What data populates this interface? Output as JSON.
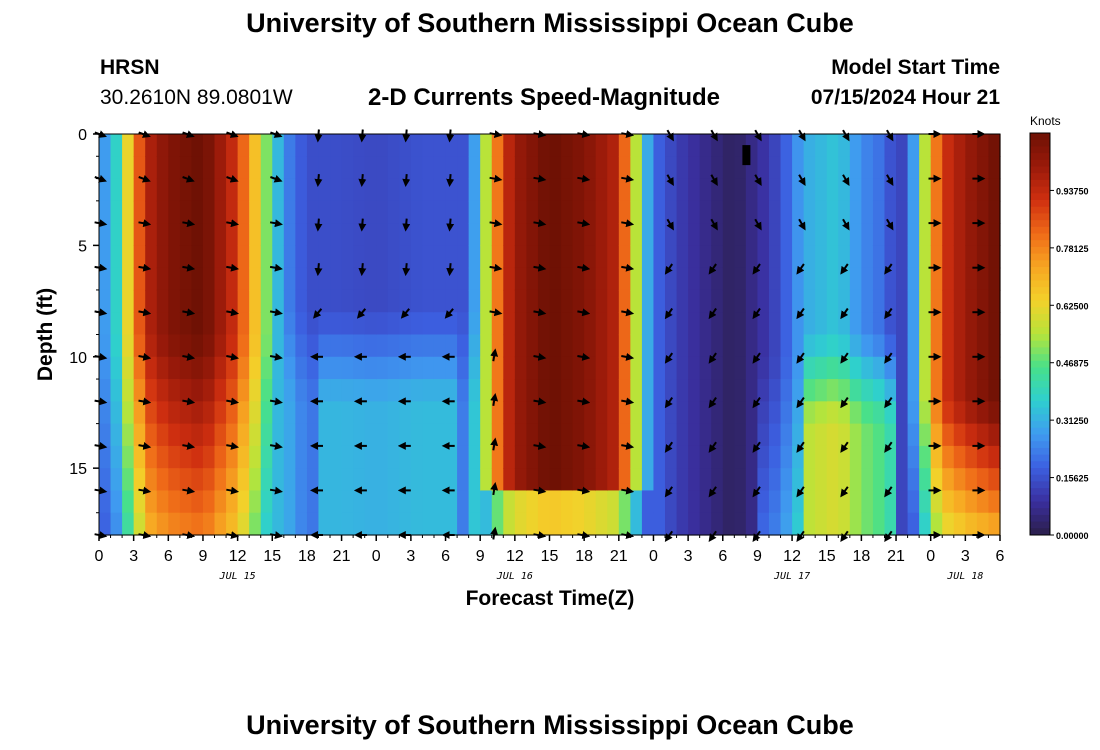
{
  "header": {
    "title": "University of Southern Mississippi Ocean Cube",
    "station": "HRSN",
    "coords": "30.2610N  89.0801W",
    "subtitle": "2-D Currents Speed-Magnitude",
    "model_label": "Model Start Time",
    "model_time": "07/15/2024 Hour 21"
  },
  "footer": {
    "title": "University of Southern Mississippi Ocean Cube"
  },
  "chart_data": {
    "type": "heatmap",
    "title": "2-D Currents Speed-Magnitude",
    "xlabel": "Forecast Time(Z)",
    "ylabel": "Depth (ft)",
    "x_range_hours": [
      0,
      78
    ],
    "y_range_ft": [
      0,
      18
    ],
    "x_tick_labels": [
      "0",
      "3",
      "6",
      "9",
      "12",
      "15",
      "18",
      "21",
      "0",
      "3",
      "6",
      "9",
      "12",
      "15",
      "18",
      "21",
      "0",
      "3",
      "6",
      "9",
      "12",
      "15",
      "18",
      "21",
      "0",
      "3",
      "6"
    ],
    "y_ticks": [
      0,
      5,
      10,
      15
    ],
    "day_labels": [
      {
        "label": "JUL 15",
        "hour": 12
      },
      {
        "label": "JUL 16",
        "hour": 36
      },
      {
        "label": "JUL 17",
        "hour": 60
      },
      {
        "label": "JUL 18",
        "hour": 75
      }
    ],
    "colorbar": {
      "unit": "Knots",
      "min": 0,
      "max": 1.09375,
      "tick_values": [
        0.0,
        0.15625,
        0.3125,
        0.46875,
        0.625,
        0.78125,
        0.9375
      ],
      "tick_labels": [
        "0.00000",
        "0.15625",
        "0.31250",
        "0.46875",
        "0.62500",
        "0.78125",
        "0.93750"
      ]
    },
    "speed_profile_surface": [
      [
        0,
        0.3
      ],
      [
        1,
        0.25
      ],
      [
        2,
        0.5
      ],
      [
        3,
        0.75
      ],
      [
        4,
        0.95
      ],
      [
        6,
        1.05
      ],
      [
        9,
        1.1
      ],
      [
        12,
        0.9
      ],
      [
        14,
        0.6
      ],
      [
        15,
        0.4
      ],
      [
        16,
        0.25
      ],
      [
        17,
        0.2
      ],
      [
        18,
        0.15
      ],
      [
        21,
        0.15
      ],
      [
        24,
        0.14
      ],
      [
        28,
        0.16
      ],
      [
        32,
        0.16
      ],
      [
        33,
        0.4
      ],
      [
        34,
        0.7
      ],
      [
        35,
        0.9
      ],
      [
        36,
        1.0
      ],
      [
        39,
        1.1
      ],
      [
        42,
        1.05
      ],
      [
        45,
        0.95
      ],
      [
        46,
        0.7
      ],
      [
        47,
        0.4
      ],
      [
        48,
        0.2
      ],
      [
        50,
        0.12
      ],
      [
        53,
        0.06
      ],
      [
        55,
        0.02
      ],
      [
        57,
        0.08
      ],
      [
        59,
        0.15
      ],
      [
        61,
        0.3
      ],
      [
        64,
        0.35
      ],
      [
        66,
        0.25
      ],
      [
        68,
        0.2
      ],
      [
        69,
        0.12
      ],
      [
        70,
        0.15
      ],
      [
        71,
        0.4
      ],
      [
        72,
        0.7
      ],
      [
        73,
        0.9
      ],
      [
        75,
        1.0
      ],
      [
        78,
        1.1
      ]
    ],
    "current_direction_deg_by_segment": [
      {
        "hours": [
          0,
          16
        ],
        "direction": "northeast"
      },
      {
        "hours": [
          17,
          33
        ],
        "direction": "south / southwest / west"
      },
      {
        "hours": [
          34,
          48
        ],
        "direction": "east / northeast"
      },
      {
        "hours": [
          49,
          69
        ],
        "direction": "south / southwest"
      },
      {
        "hours": [
          70,
          78
        ],
        "direction": "east"
      }
    ],
    "colors": {
      "scale": [
        "#2b1e4a",
        "#3a2f9e",
        "#3c5fe0",
        "#3f9bf0",
        "#2ecfcf",
        "#48e08a",
        "#b7e43a",
        "#f3d12a",
        "#f7a622",
        "#ef6a18",
        "#cf2f10",
        "#9a1a0a",
        "#6e1104"
      ]
    }
  }
}
